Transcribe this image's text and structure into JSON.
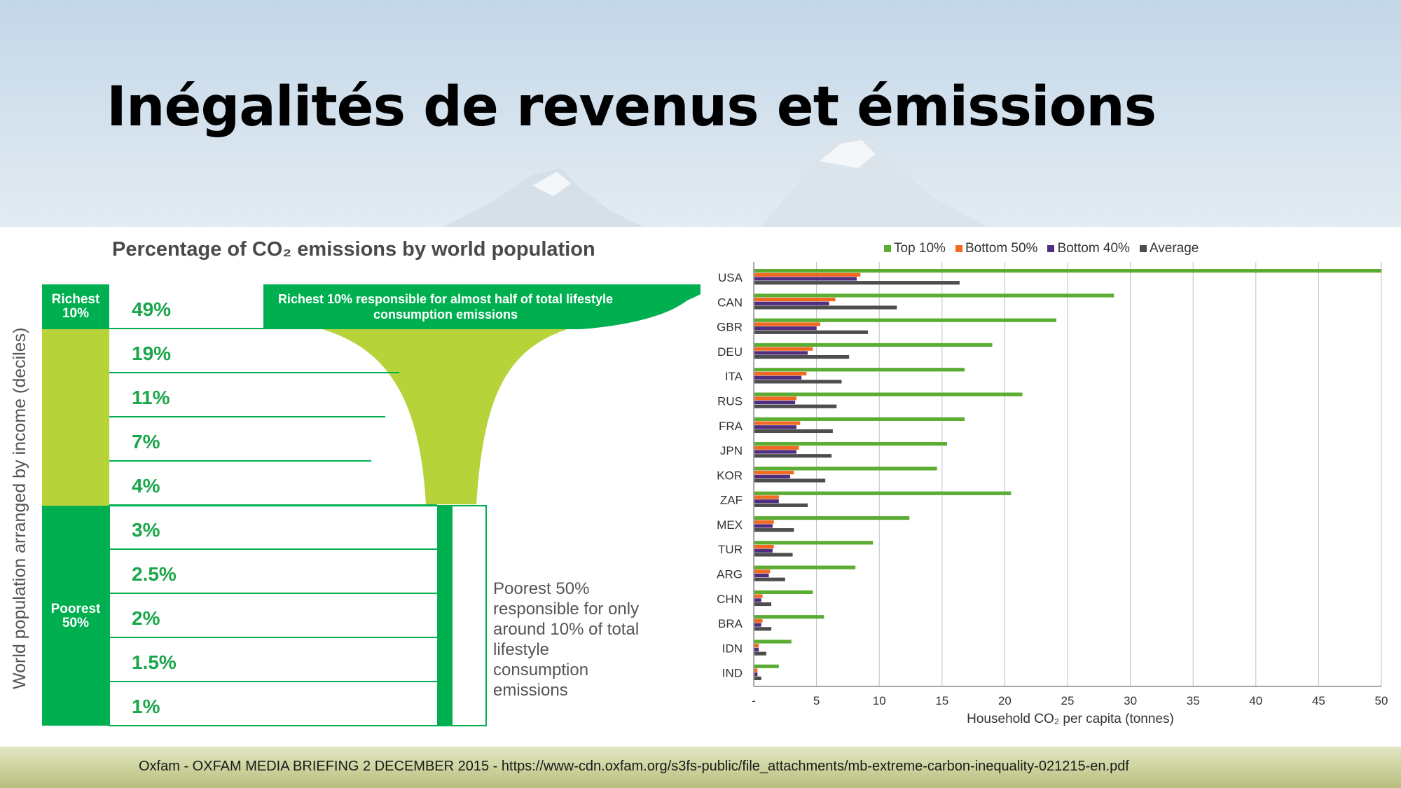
{
  "slide": {
    "title": "Inégalités de revenus et émissions",
    "footer": "Oxfam - OXFAM MEDIA BRIEFING 2 DECEMBER 2015 - https://www-cdn.oxfam.org/s3fs-public/file_attachments/mb-extreme-carbon-inequality-021215-en.pdf"
  },
  "colors": {
    "top10": "#5aac32",
    "bottom50": "#f26a21",
    "bottom40": "#4f2d7f",
    "average": "#4d4d4d",
    "dark_green": "#00b050",
    "light_green": "#b6d43a"
  },
  "chart_data": [
    {
      "type": "table",
      "title": "Percentage of CO₂ emissions by world population",
      "ylabel": "World population arranged by income (deciles)",
      "rows": [
        {
          "group": "Richest 10%",
          "value": "49%"
        },
        {
          "group": "",
          "value": "19%"
        },
        {
          "group": "",
          "value": "11%"
        },
        {
          "group": "",
          "value": "7%"
        },
        {
          "group": "",
          "value": "4%"
        },
        {
          "group": "",
          "value": "3%"
        },
        {
          "group": "",
          "value": "2.5%"
        },
        {
          "group": "Poorest 50%",
          "value": "2%"
        },
        {
          "group": "",
          "value": "1.5%"
        },
        {
          "group": "",
          "value": "1%"
        }
      ],
      "group_labels": {
        "richest": "Richest 10%",
        "poorest": "Poorest 50%"
      },
      "annotations": {
        "top": "Richest 10% responsible for almost half of total lifestyle consumption emissions",
        "bottom": "Poorest 50% responsible for only around 10% of total lifestyle consumption emissions"
      }
    },
    {
      "type": "bar",
      "orientation": "horizontal",
      "xlabel": "Household CO₂ per capita (tonnes)",
      "xlim": [
        0,
        50
      ],
      "xticks": [
        0,
        5,
        10,
        15,
        20,
        25,
        30,
        35,
        40,
        45,
        50
      ],
      "xtick_labels": [
        "-",
        "5",
        "10",
        "15",
        "20",
        "25",
        "30",
        "35",
        "40",
        "45",
        "50"
      ],
      "grid": true,
      "legend_position": "top",
      "categories": [
        "USA",
        "CAN",
        "GBR",
        "DEU",
        "ITA",
        "RUS",
        "FRA",
        "JPN",
        "KOR",
        "ZAF",
        "MEX",
        "TUR",
        "ARG",
        "CHN",
        "BRA",
        "IDN",
        "IND"
      ],
      "series": [
        {
          "name": "Top 10%",
          "values": [
            50,
            28.7,
            24.1,
            19,
            16.8,
            21.4,
            16.8,
            15.4,
            14.6,
            20.5,
            12.4,
            9.5,
            8.1,
            4.7,
            5.6,
            3.0,
            2.0
          ]
        },
        {
          "name": "Bottom 50%",
          "values": [
            8.5,
            6.5,
            5.3,
            4.7,
            4.2,
            3.4,
            3.7,
            3.6,
            3.2,
            2.0,
            1.6,
            1.6,
            1.3,
            0.7,
            0.7,
            0.4,
            0.3
          ]
        },
        {
          "name": "Bottom 40%",
          "values": [
            8.2,
            6.0,
            5.0,
            4.3,
            3.8,
            3.3,
            3.4,
            3.4,
            2.9,
            2.0,
            1.5,
            1.5,
            1.2,
            0.6,
            0.6,
            0.4,
            0.3
          ]
        },
        {
          "name": "Average",
          "values": [
            16.4,
            11.4,
            9.1,
            7.6,
            7.0,
            6.6,
            6.3,
            6.2,
            5.7,
            4.3,
            3.2,
            3.1,
            2.5,
            1.4,
            1.4,
            1.0,
            0.6
          ]
        }
      ]
    }
  ]
}
